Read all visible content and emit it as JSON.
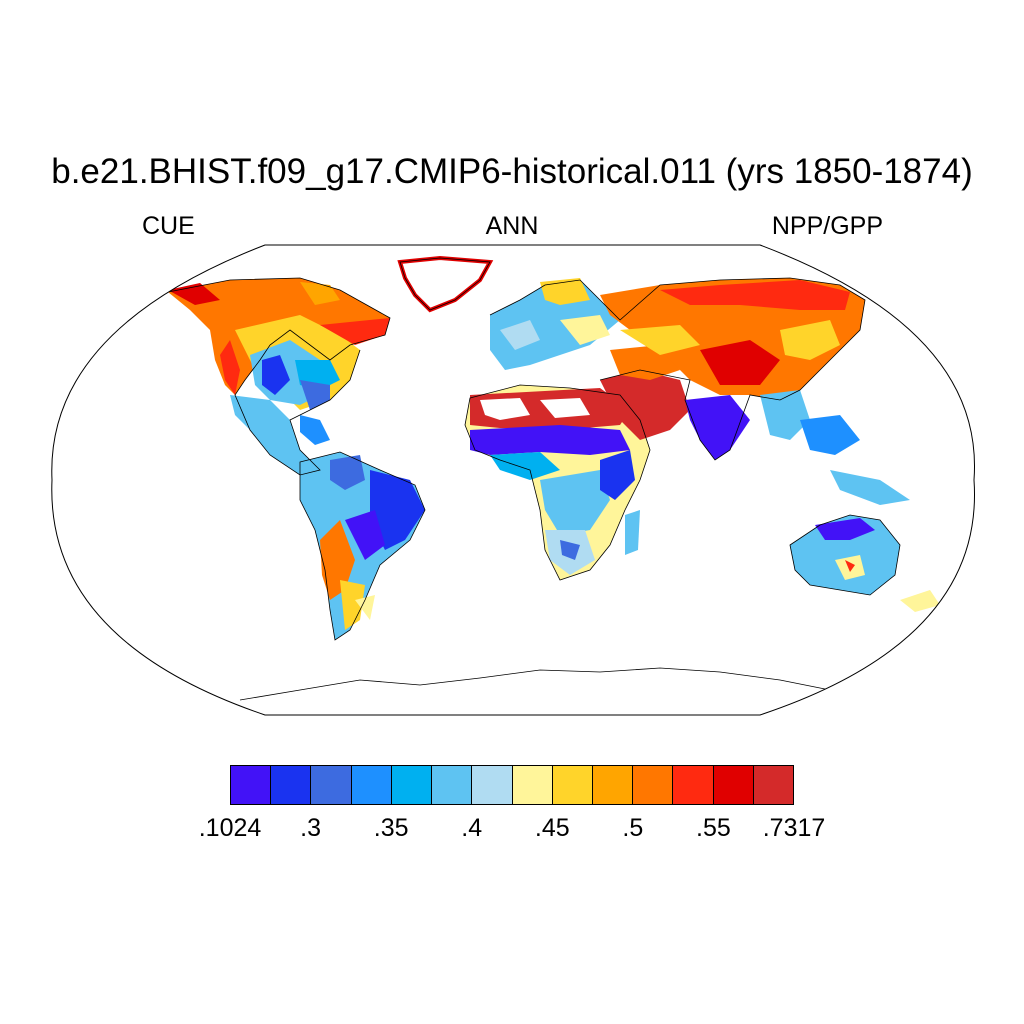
{
  "title": "b.e21.BHIST.f09_g17.CMIP6-historical.011 (yrs 1850-1874)",
  "left_string": "CUE",
  "center_string": "ANN",
  "right_string": "NPP/GPP",
  "colorbar": {
    "colors": [
      "#4212f7",
      "#1a33f0",
      "#3d6be0",
      "#1e90ff",
      "#00b0f0",
      "#5ec3f2",
      "#b0dcf2",
      "#fff59a",
      "#ffd42a",
      "#ffa500",
      "#ff7700",
      "#ff2a10",
      "#e00000",
      "#d42a2a"
    ],
    "labels": [
      ".1024",
      ".3",
      ".35",
      ".4",
      ".45",
      ".5",
      ".55",
      ".7317"
    ]
  }
}
